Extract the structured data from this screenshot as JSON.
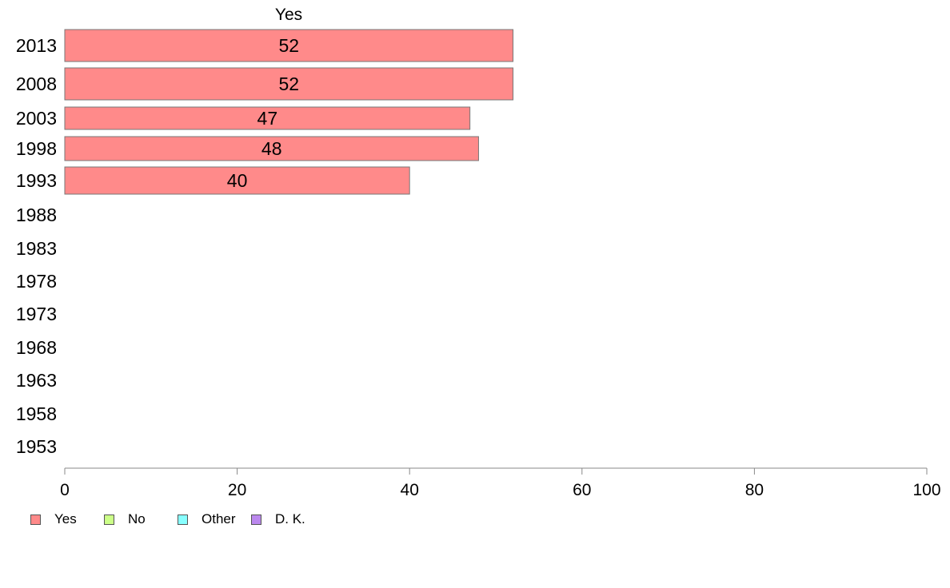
{
  "chart_data": {
    "type": "bar",
    "orientation": "horizontal",
    "title": "Yes",
    "categories": [
      "2013",
      "2008",
      "2003",
      "1998",
      "1993",
      "1988",
      "1983",
      "1978",
      "1973",
      "1968",
      "1963",
      "1958",
      "1953"
    ],
    "series": [
      {
        "name": "Yes",
        "color": "#ff8a8a",
        "values": [
          52,
          52,
          47,
          48,
          40,
          null,
          null,
          null,
          null,
          null,
          null,
          null,
          null
        ]
      }
    ],
    "data_labels": [
      "52",
      "52",
      "47",
      "48",
      "40"
    ],
    "xlim": [
      0,
      100
    ],
    "xticks": [
      0,
      20,
      40,
      60,
      80,
      100
    ],
    "grid": false,
    "legend_placement": "bottom-left"
  },
  "legend": {
    "items": [
      {
        "label": "Yes",
        "color": "#ff8a8a"
      },
      {
        "label": "No",
        "color": "#ccff88"
      },
      {
        "label": "Other",
        "color": "#88ffff"
      },
      {
        "label": "D. K.",
        "color": "#bb88ee"
      }
    ]
  }
}
